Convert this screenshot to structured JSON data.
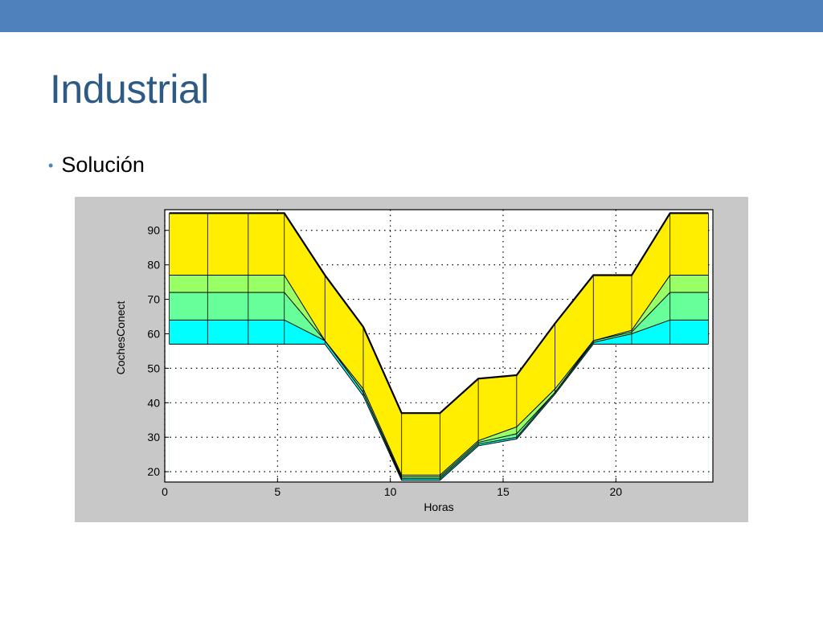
{
  "slide": {
    "title": "Industrial",
    "bullet": "Solución",
    "accent_color": "#4f81bd",
    "title_color": "#2d5b86"
  },
  "chart_data": {
    "type": "area",
    "xlabel": "Horas",
    "ylabel": "CochesConect",
    "xlim": [
      0,
      24.3
    ],
    "ylim": [
      17,
      96
    ],
    "xticks": [
      0,
      5,
      10,
      15,
      20
    ],
    "yticks": [
      20,
      30,
      40,
      50,
      60,
      70,
      80,
      90
    ],
    "grid": "dotted",
    "x": [
      0.2,
      1.9,
      3.7,
      5.3,
      7.1,
      8.8,
      10.5,
      12.2,
      13.9,
      15.6,
      17.3,
      19.0,
      20.7,
      22.4,
      24.1
    ],
    "layers": [
      {
        "name": "",
        "color": "#ffee00",
        "values": [
          95,
          95,
          95,
          95,
          77,
          62,
          37,
          37,
          47,
          48,
          63,
          77,
          77,
          95,
          95
        ]
      },
      {
        "name": "",
        "color": "#99ff66",
        "values": [
          77,
          77,
          77,
          77,
          58,
          44,
          19,
          19,
          29,
          33,
          44,
          58,
          61,
          77,
          77
        ]
      },
      {
        "name": "",
        "color": "#66ff99",
        "values": [
          72,
          72,
          72,
          72,
          58,
          43,
          18.5,
          18.5,
          28.5,
          31,
          43,
          58,
          60.5,
          72,
          72
        ]
      },
      {
        "name": "",
        "color": "#00ffff",
        "values": [
          64,
          64,
          64,
          64,
          58,
          43,
          18,
          18,
          28,
          30,
          43,
          57.5,
          60,
          64,
          64
        ]
      },
      {
        "name": "",
        "color": "#00ccff",
        "values": [
          57,
          57,
          57,
          57,
          57,
          42,
          17.5,
          17.5,
          27.5,
          29.5,
          42.5,
          57,
          57,
          57,
          57
        ]
      }
    ]
  }
}
